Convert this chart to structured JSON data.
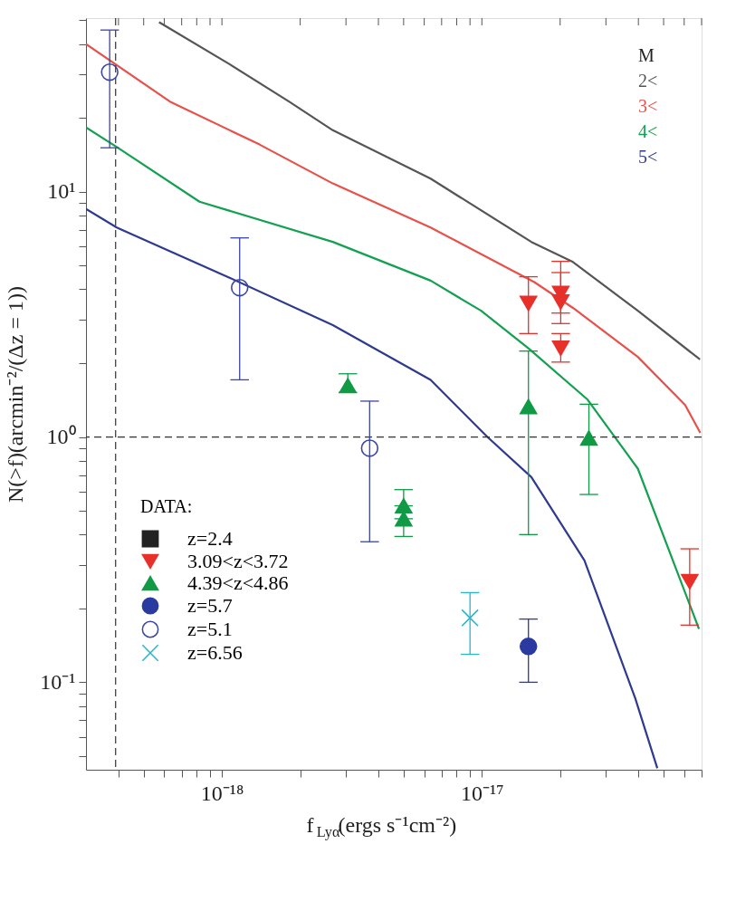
{
  "chart_data": {
    "type": "line",
    "xlabel": "f$_{Lyα}$(ergs s⁻¹cm⁻²)",
    "ylabel": "N(>f)(arcmin⁻²/(Δz = 1))",
    "log": "xy",
    "grid": false,
    "legend": "bottom left",
    "legend_title": "DATA:",
    "line_style": "solid",
    "xlim": [
      3e-19,
      7e-17
    ],
    "ylim": [
      0.044,
      51
    ],
    "xticks": [
      {
        "value": 4e-19,
        "label": null
      },
      {
        "value": 5e-19,
        "label": null
      },
      {
        "value": 6e-19,
        "label": null
      },
      {
        "value": 7e-19,
        "label": null
      },
      {
        "value": 8e-19,
        "label": null
      },
      {
        "value": 9e-19,
        "label": null
      },
      {
        "value": 1e-18,
        "label": "10⁻¹⁸"
      },
      {
        "value": 2e-18,
        "label": null
      },
      {
        "value": 3e-18,
        "label": null
      },
      {
        "value": 4e-18,
        "label": null
      },
      {
        "value": 5e-18,
        "label": null
      },
      {
        "value": 6e-18,
        "label": null
      },
      {
        "value": 7e-18,
        "label": null
      },
      {
        "value": 8e-18,
        "label": null
      },
      {
        "value": 9e-18,
        "label": null
      },
      {
        "value": 1e-17,
        "label": "10⁻¹⁷"
      },
      {
        "value": 2e-17,
        "label": null
      },
      {
        "value": 3e-17,
        "label": null
      },
      {
        "value": 4e-17,
        "label": null
      },
      {
        "value": 5e-17,
        "label": null
      },
      {
        "value": 6e-17,
        "label": null
      },
      {
        "value": 7e-17,
        "label": null
      }
    ],
    "yticks": [
      {
        "value": 0.05,
        "label": null
      },
      {
        "value": 0.06,
        "label": null
      },
      {
        "value": 0.07,
        "label": null
      },
      {
        "value": 0.08,
        "label": null
      },
      {
        "value": 0.09,
        "label": null
      },
      {
        "value": 0.1,
        "label": "10⁻¹"
      },
      {
        "value": 0.2,
        "label": null
      },
      {
        "value": 0.3,
        "label": null
      },
      {
        "value": 0.4,
        "label": null
      },
      {
        "value": 0.5,
        "label": null
      },
      {
        "value": 0.6,
        "label": null
      },
      {
        "value": 0.7,
        "label": null
      },
      {
        "value": 0.8,
        "label": null
      },
      {
        "value": 0.9,
        "label": null
      },
      {
        "value": 1,
        "label": "10⁰"
      },
      {
        "value": 2,
        "label": null
      },
      {
        "value": 3,
        "label": null
      },
      {
        "value": 4,
        "label": null
      },
      {
        "value": 5,
        "label": null
      },
      {
        "value": 6,
        "label": null
      },
      {
        "value": 7,
        "label": null
      },
      {
        "value": 8,
        "label": null
      },
      {
        "value": 9,
        "label": null
      },
      {
        "value": 10,
        "label": "10¹"
      },
      {
        "value": 20,
        "label": null
      },
      {
        "value": 30,
        "label": null
      },
      {
        "value": 40,
        "label": null
      },
      {
        "value": 50,
        "label": null
      }
    ],
    "ref_lines": [
      {
        "axis": "x",
        "value": 3.9e-19,
        "line_style": "dashed",
        "color": "#333333"
      },
      {
        "axis": "y",
        "value": 1,
        "line_style": "dashed",
        "color": "#333333"
      }
    ],
    "annotations": [
      "M"
    ],
    "series": [
      {
        "name": "2<",
        "color": "#555555",
        "x": [
          5.73e-19,
          1.07e-18,
          1.8e-18,
          2.67e-18,
          6.35e-18,
          1.55e-17,
          2.24e-17,
          3.98e-17,
          6.9e-17
        ],
        "values": [
          49.1,
          33.1,
          23.4,
          17.8,
          11.3,
          6.24,
          5.17,
          3.27,
          2.07
        ]
      },
      {
        "name": "3<",
        "color": "#e8504a",
        "x": [
          3e-19,
          6.31e-19,
          1.39e-18,
          2.67e-18,
          6.35e-18,
          1.59e-17,
          2.24e-17,
          3.98e-17,
          6.05e-17,
          6.92e-17
        ],
        "values": [
          40.0,
          23.3,
          15.6,
          10.8,
          7.14,
          4.28,
          3.36,
          2.12,
          1.35,
          1.04
        ]
      },
      {
        "name": "4<",
        "color": "#13a050",
        "x": [
          3e-19,
          3.94e-19,
          8.2e-19,
          2.67e-18,
          6.35e-18,
          9.93e-18,
          1.51e-17,
          2.55e-17,
          3.98e-17,
          6.84e-17
        ],
        "values": [
          18.3,
          15.2,
          9.1,
          6.24,
          4.34,
          3.27,
          2.3,
          1.42,
          0.743,
          0.165
        ]
      },
      {
        "name": "5<",
        "color": "#2e3a8f",
        "x": [
          3e-19,
          3.94e-19,
          1.07e-18,
          2.67e-18,
          6.35e-18,
          1.05e-17,
          1.55e-17,
          2.48e-17,
          3.89e-17,
          4.73e-17
        ],
        "values": [
          8.51,
          7.14,
          4.46,
          2.86,
          1.71,
          1.0,
          0.686,
          0.314,
          0.086,
          0.0446
        ]
      },
      {
        "name": "z=2.4",
        "type": "scatter",
        "marker": "square",
        "color": "#222222"
      },
      {
        "name": "3.09<z<3.72",
        "type": "scatter",
        "marker": "triangle-down",
        "color": "#e8302a",
        "x": [
          1.51e-17,
          2.01e-17,
          2.01e-17,
          2.01e-17,
          6.3e-17
        ],
        "values": [
          3.5,
          3.85,
          3.55,
          2.3,
          0.257
        ],
        "errors": [
          [
            2.64,
            4.5
          ],
          [
            3.2,
            5.2
          ],
          [
            2.9,
            4.68
          ],
          [
            2.02,
            2.64
          ],
          [
            0.171,
            0.35
          ]
        ]
      },
      {
        "name": "4.39<z<4.86",
        "type": "scatter",
        "marker": "triangle",
        "color": "#109a45",
        "x": [
          3.05e-18,
          5e-18,
          5e-18,
          1.51e-17,
          2.58e-17
        ],
        "values": [
          1.62,
          0.524,
          0.464,
          1.33,
          0.99
        ],
        "errors": [
          [
            1.52,
            1.81
          ],
          [
            0.524,
            0.61
          ],
          [
            0.393,
            0.464
          ],
          [
            0.4,
            2.24
          ],
          [
            0.583,
            1.36
          ]
        ]
      },
      {
        "name": "z=5.7",
        "type": "scatter",
        "marker": "circle",
        "color": "#2a3aa0",
        "x": [
          1.51e-17
        ],
        "values": [
          0.14
        ],
        "errors": [
          [
            0.1,
            0.181
          ]
        ]
      },
      {
        "name": "z=5.1",
        "type": "scatter",
        "marker": "circle-open",
        "color": "#3a46a0",
        "x": [
          3.7e-19,
          1.17e-18,
          3.7e-18
        ],
        "values": [
          30.7,
          4.06,
          0.9
        ],
        "errors": [
          [
            15.1,
            45.6
          ],
          [
            1.71,
            6.48
          ],
          [
            0.374,
            1.4
          ]
        ]
      },
      {
        "name": "z=6.56",
        "type": "scatter",
        "marker": "cross",
        "color": "#27b5c8",
        "x": [
          9e-18
        ],
        "values": [
          0.183
        ],
        "errors": [
          [
            0.13,
            0.232
          ]
        ]
      }
    ]
  }
}
